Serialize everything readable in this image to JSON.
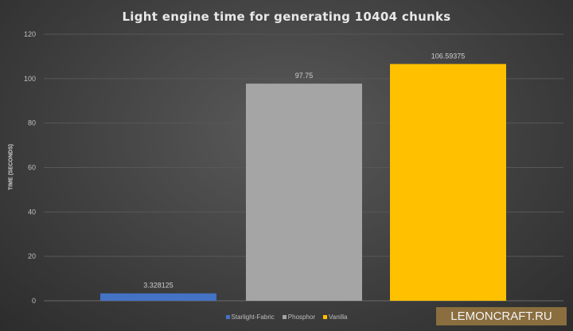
{
  "chart_data": {
    "type": "bar",
    "title": "Light engine time for generating 10404 chunks",
    "xlabel": "",
    "ylabel": "TIME (SECONDS)",
    "ylim": [
      0,
      120
    ],
    "yticks": [
      0,
      20,
      40,
      60,
      80,
      100,
      120
    ],
    "grid": true,
    "legend_position": "bottom",
    "series": [
      {
        "name": "Starlight-Fabric",
        "values": [
          3.328125
        ],
        "label": "3.328125",
        "color": "#4472c4"
      },
      {
        "name": "Phosphor",
        "values": [
          97.75
        ],
        "label": "97.75",
        "color": "#a5a5a5"
      },
      {
        "name": "Vanilla",
        "values": [
          106.59375
        ],
        "label": "106.59375",
        "color": "#ffc000"
      }
    ]
  },
  "watermark": "LEMONCRAFT.RU"
}
